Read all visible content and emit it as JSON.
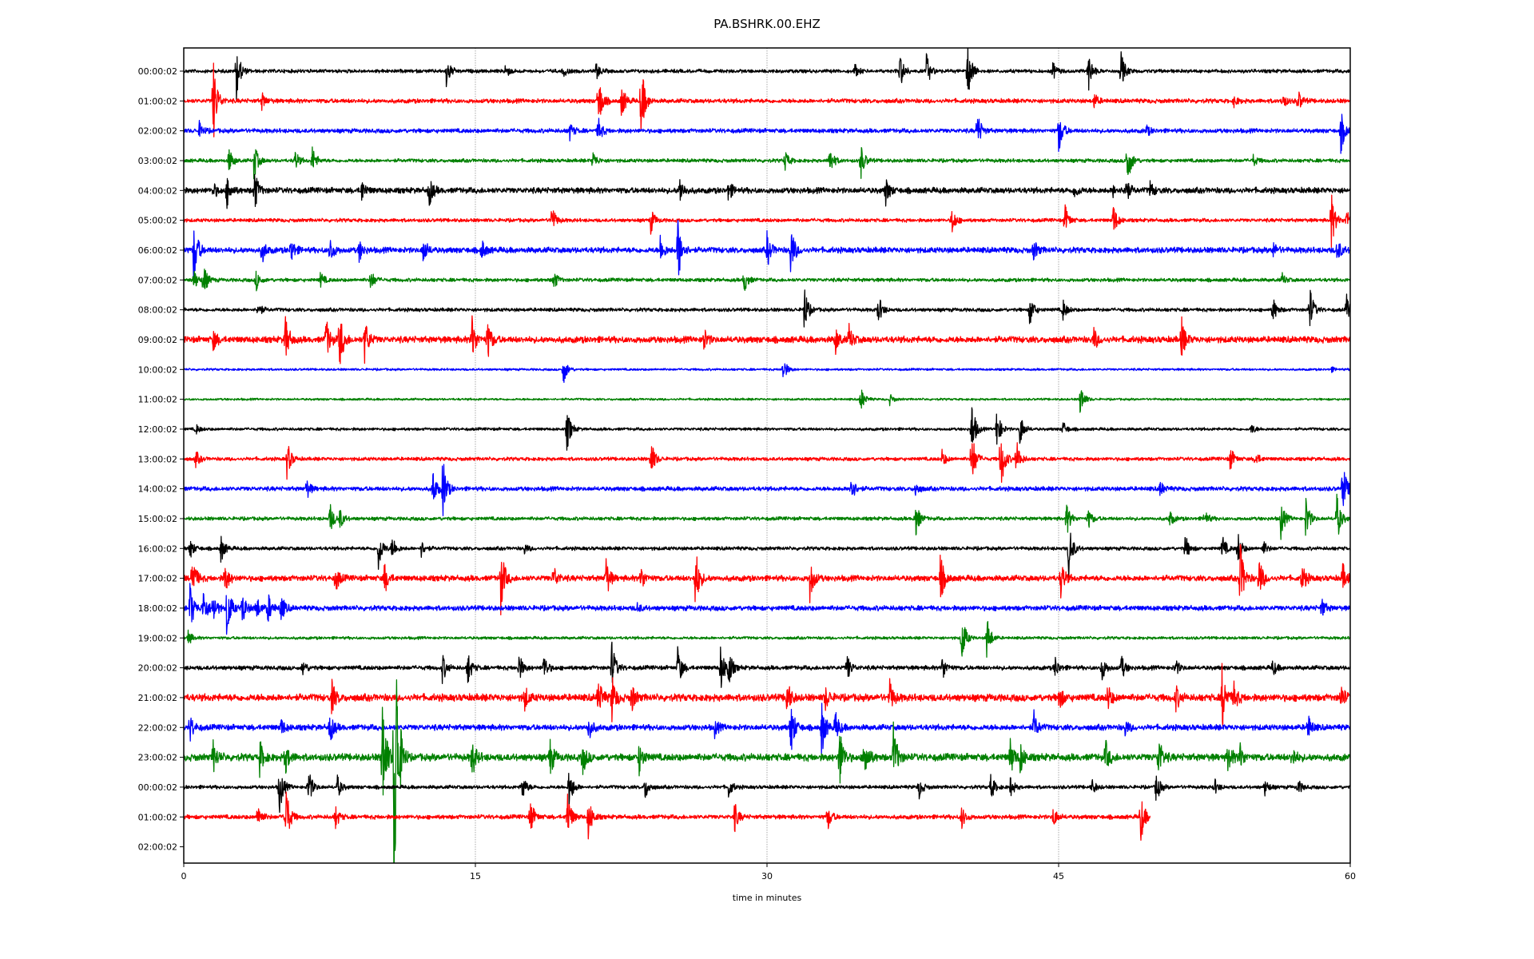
{
  "chart_data": {
    "type": "line",
    "title": "PA.BSHRK.00.EHZ",
    "xlabel": "time in minutes",
    "ylabel": "",
    "xlim": [
      0,
      60
    ],
    "xticks": [
      "0",
      "15",
      "30",
      "45",
      "60"
    ],
    "xtick_values": [
      0,
      15,
      30,
      45,
      60
    ],
    "grid": "vertical dotted at x ticks",
    "colors": [
      "#000000",
      "#ff0000",
      "#0000ff",
      "#008000"
    ],
    "row_labels": [
      "00:00:02",
      "01:00:02",
      "02:00:02",
      "03:00:02",
      "04:00:02",
      "05:00:02",
      "06:00:02",
      "07:00:02",
      "08:00:02",
      "09:00:02",
      "10:00:02",
      "11:00:02",
      "12:00:02",
      "13:00:02",
      "14:00:02",
      "15:00:02",
      "16:00:02",
      "17:00:02",
      "18:00:02",
      "19:00:02",
      "20:00:02",
      "21:00:02",
      "22:00:02",
      "23:00:02",
      "00:00:02",
      "01:00:02",
      "02:00:02"
    ],
    "traces": [
      {
        "noise": 0.05,
        "end": 60,
        "events": [
          [
            2.7,
            1.0
          ],
          [
            13.5,
            0.6
          ],
          [
            16.5,
            0.3
          ],
          [
            19.5,
            0.2
          ],
          [
            21.2,
            0.3
          ],
          [
            34.5,
            0.25
          ],
          [
            36.8,
            0.8
          ],
          [
            38.2,
            0.6
          ],
          [
            40.3,
            1.2
          ],
          [
            44.7,
            0.3
          ],
          [
            46.5,
            0.8
          ],
          [
            48.2,
            0.7
          ]
        ]
      },
      {
        "noise": 0.06,
        "end": 60,
        "events": [
          [
            1.5,
            1.6
          ],
          [
            4,
            0.3
          ],
          [
            21.3,
            1.1
          ],
          [
            22.5,
            0.7
          ],
          [
            23.5,
            1.5
          ],
          [
            46.8,
            0.3
          ],
          [
            54,
            0.2
          ],
          [
            56.5,
            0.3
          ],
          [
            57.3,
            0.4
          ]
        ]
      },
      {
        "noise": 0.06,
        "end": 60,
        "events": [
          [
            0.8,
            0.3
          ],
          [
            19.8,
            0.4
          ],
          [
            21.3,
            0.5
          ],
          [
            40.8,
            0.7
          ],
          [
            45,
            0.8
          ],
          [
            49.5,
            0.2
          ],
          [
            59.5,
            0.8
          ]
        ]
      },
      {
        "noise": 0.05,
        "end": 60,
        "events": [
          [
            2.3,
            0.5
          ],
          [
            3.6,
            0.7
          ],
          [
            5.7,
            0.4
          ],
          [
            6.6,
            0.5
          ],
          [
            21,
            0.4
          ],
          [
            30.9,
            0.4
          ],
          [
            33.2,
            0.6
          ],
          [
            34.8,
            0.7
          ],
          [
            48.5,
            1.1
          ],
          [
            55,
            0.2
          ]
        ]
      },
      {
        "noise": 0.08,
        "end": 60,
        "events": [
          [
            1.5,
            0.3
          ],
          [
            2.2,
            0.6
          ],
          [
            3.6,
            0.9
          ],
          [
            9.1,
            0.5
          ],
          [
            12.6,
            0.6
          ],
          [
            25.5,
            0.5
          ],
          [
            28,
            0.4
          ],
          [
            36.1,
            0.5
          ],
          [
            45.8,
            0.3
          ],
          [
            47.8,
            0.2
          ],
          [
            49.7,
            0.3
          ],
          [
            48.4,
            0.6
          ]
        ]
      },
      {
        "noise": 0.05,
        "end": 60,
        "events": [
          [
            18.9,
            0.6
          ],
          [
            24,
            0.5
          ],
          [
            39.5,
            0.5
          ],
          [
            45.3,
            0.6
          ],
          [
            47.8,
            0.6
          ],
          [
            59,
            1.1
          ],
          [
            59.8,
            0.4
          ]
        ]
      },
      {
        "noise": 0.08,
        "end": 60,
        "events": [
          [
            0.5,
            1.3
          ],
          [
            4,
            0.5
          ],
          [
            5.5,
            0.5
          ],
          [
            7.5,
            0.5
          ],
          [
            9,
            0.4
          ],
          [
            12.3,
            0.5
          ],
          [
            15.3,
            0.4
          ],
          [
            24.5,
            0.5
          ],
          [
            25.4,
            1.3
          ],
          [
            30,
            0.6
          ],
          [
            31.2,
            1.0
          ],
          [
            43.7,
            0.4
          ],
          [
            56,
            0.3
          ],
          [
            59.3,
            0.5
          ]
        ]
      },
      {
        "noise": 0.05,
        "end": 60,
        "events": [
          [
            0.5,
            0.4
          ],
          [
            1,
            0.6
          ],
          [
            3.7,
            0.4
          ],
          [
            7,
            0.3
          ],
          [
            9.6,
            0.4
          ],
          [
            19,
            0.4
          ],
          [
            28.8,
            0.5
          ],
          [
            56.5,
            0.2
          ]
        ]
      },
      {
        "noise": 0.05,
        "end": 60,
        "events": [
          [
            3.8,
            0.3
          ],
          [
            31.9,
            0.9
          ],
          [
            35.7,
            0.6
          ],
          [
            43.5,
            0.6
          ],
          [
            45.2,
            0.4
          ],
          [
            56,
            0.5
          ],
          [
            57.9,
            0.9
          ],
          [
            59.8,
            0.5
          ]
        ]
      },
      {
        "noise": 0.09,
        "end": 60,
        "events": [
          [
            1.5,
            0.4
          ],
          [
            5.2,
            0.9
          ],
          [
            7.3,
            0.8
          ],
          [
            8,
            1.1
          ],
          [
            9.3,
            0.8
          ],
          [
            14.8,
            0.9
          ],
          [
            15.6,
            0.8
          ],
          [
            26.7,
            0.5
          ],
          [
            33.5,
            0.5
          ],
          [
            34.2,
            0.5
          ],
          [
            46.8,
            0.4
          ],
          [
            51.3,
            0.8
          ]
        ]
      },
      {
        "noise": 0.03,
        "end": 60,
        "events": [
          [
            19.5,
            0.6
          ],
          [
            30.8,
            0.5
          ],
          [
            59,
            0.1
          ]
        ]
      },
      {
        "noise": 0.03,
        "end": 60,
        "events": [
          [
            34.8,
            0.5
          ],
          [
            36.3,
            0.2
          ],
          [
            46.1,
            0.6
          ]
        ]
      },
      {
        "noise": 0.04,
        "end": 60,
        "events": [
          [
            0.6,
            0.2
          ],
          [
            19.7,
            0.8
          ],
          [
            40.5,
            1.2
          ],
          [
            41.8,
            0.8
          ],
          [
            43,
            0.6
          ],
          [
            45.2,
            0.3
          ],
          [
            54.9,
            0.2
          ]
        ]
      },
      {
        "noise": 0.05,
        "end": 60,
        "events": [
          [
            0.6,
            0.3
          ],
          [
            5.3,
            0.7
          ],
          [
            24,
            0.8
          ],
          [
            39,
            0.3
          ],
          [
            40.5,
            1.2
          ],
          [
            42,
            1.3
          ],
          [
            42.8,
            0.8
          ],
          [
            53.8,
            0.5
          ],
          [
            55.1,
            0.3
          ]
        ]
      },
      {
        "noise": 0.06,
        "end": 60,
        "events": [
          [
            6.3,
            0.4
          ],
          [
            12.8,
            0.7
          ],
          [
            13.3,
            1.2
          ],
          [
            34.3,
            0.6
          ],
          [
            37.6,
            0.3
          ],
          [
            50.2,
            0.3
          ],
          [
            59.6,
            1.0
          ]
        ]
      },
      {
        "noise": 0.05,
        "end": 60,
        "events": [
          [
            7.5,
            0.6
          ],
          [
            8,
            0.4
          ],
          [
            37.6,
            0.8
          ],
          [
            45.4,
            0.6
          ],
          [
            46.5,
            0.4
          ],
          [
            50.7,
            0.3
          ],
          [
            52.5,
            0.3
          ],
          [
            56.4,
            0.8
          ],
          [
            57.7,
            0.8
          ],
          [
            59.3,
            0.9
          ]
        ]
      },
      {
        "noise": 0.05,
        "end": 60,
        "events": [
          [
            0.3,
            0.4
          ],
          [
            1.9,
            0.5
          ],
          [
            10,
            0.8
          ],
          [
            10.7,
            0.5
          ],
          [
            12.2,
            0.3
          ],
          [
            17.5,
            0.2
          ],
          [
            45.5,
            1.1
          ],
          [
            51.5,
            0.5
          ],
          [
            53.4,
            0.5
          ],
          [
            54.2,
            0.6
          ],
          [
            55.5,
            0.3
          ]
        ]
      },
      {
        "noise": 0.08,
        "end": 60,
        "events": [
          [
            0.4,
            1.0
          ],
          [
            2.1,
            0.6
          ],
          [
            7.8,
            0.5
          ],
          [
            10.3,
            0.6
          ],
          [
            16.3,
            1.2
          ],
          [
            19,
            0.5
          ],
          [
            21.7,
            0.8
          ],
          [
            23.5,
            0.5
          ],
          [
            26.3,
            1.2
          ],
          [
            32.2,
            0.8
          ],
          [
            38.9,
            0.9
          ],
          [
            45.1,
            0.7
          ],
          [
            54.3,
            1.5
          ],
          [
            55.3,
            0.8
          ],
          [
            57.5,
            0.6
          ],
          [
            59.6,
            0.5
          ]
        ]
      },
      {
        "noise": 0.07,
        "end": 60,
        "events": [
          [
            0.3,
            1.0
          ],
          [
            1,
            0.7
          ],
          [
            1.5,
            0.6
          ],
          [
            2.2,
            1.2
          ],
          [
            3,
            0.6
          ],
          [
            3.7,
            0.5
          ],
          [
            4.3,
            0.6
          ],
          [
            5,
            0.5
          ],
          [
            23.3,
            0.2
          ],
          [
            58.5,
            0.4
          ]
        ]
      },
      {
        "noise": 0.04,
        "end": 60,
        "events": [
          [
            0.2,
            0.3
          ],
          [
            40,
            1.0
          ],
          [
            41.3,
            0.5
          ],
          [
            41.3,
            0.3
          ]
        ]
      },
      {
        "noise": 0.06,
        "end": 60,
        "events": [
          [
            6.1,
            0.3
          ],
          [
            13.3,
            0.5
          ],
          [
            14.6,
            0.6
          ],
          [
            17.2,
            0.6
          ],
          [
            18.5,
            0.5
          ],
          [
            22,
            1.0
          ],
          [
            25.4,
            0.8
          ],
          [
            27.6,
            0.9
          ],
          [
            28,
            0.7
          ],
          [
            34.1,
            0.5
          ],
          [
            39,
            0.5
          ],
          [
            44.8,
            0.4
          ],
          [
            47.2,
            0.5
          ],
          [
            48.2,
            0.5
          ],
          [
            51,
            0.3
          ],
          [
            56,
            0.3
          ]
        ]
      },
      {
        "noise": 0.1,
        "end": 60,
        "events": [
          [
            7.6,
            0.6
          ],
          [
            17.5,
            0.5
          ],
          [
            21.3,
            0.8
          ],
          [
            22,
            0.9
          ],
          [
            23,
            0.6
          ],
          [
            31,
            0.7
          ],
          [
            33,
            0.4
          ],
          [
            36.3,
            0.6
          ],
          [
            45,
            0.5
          ],
          [
            47.5,
            0.5
          ],
          [
            51,
            0.5
          ],
          [
            53.4,
            1.2
          ],
          [
            54,
            0.5
          ],
          [
            59.5,
            0.5
          ]
        ]
      },
      {
        "noise": 0.08,
        "end": 60,
        "events": [
          [
            0.3,
            0.5
          ],
          [
            5,
            0.3
          ],
          [
            7.5,
            0.6
          ],
          [
            20.8,
            0.5
          ],
          [
            27.3,
            0.3
          ],
          [
            31.2,
            1.1
          ],
          [
            32.8,
            1.0
          ],
          [
            33.5,
            0.6
          ],
          [
            43.7,
            0.6
          ],
          [
            48.4,
            0.3
          ],
          [
            57.8,
            0.5
          ]
        ]
      },
      {
        "noise": 0.1,
        "end": 60,
        "events": [
          [
            1.5,
            0.6
          ],
          [
            3.9,
            0.6
          ],
          [
            5.2,
            0.6
          ],
          [
            10.2,
            2.5
          ],
          [
            10.8,
            8.0
          ],
          [
            14.8,
            0.8
          ],
          [
            18.8,
            0.8
          ],
          [
            20.5,
            0.6
          ],
          [
            23.4,
            0.6
          ],
          [
            33.7,
            1.3
          ],
          [
            35,
            0.9
          ],
          [
            36.5,
            1.2
          ],
          [
            42.5,
            0.7
          ],
          [
            43,
            0.6
          ],
          [
            47.4,
            0.6
          ],
          [
            50.1,
            0.9
          ],
          [
            53.7,
            0.6
          ],
          [
            54.3,
            0.5
          ],
          [
            57,
            0.4
          ]
        ]
      },
      {
        "noise": 0.05,
        "end": 60,
        "events": [
          [
            4.9,
            1.0
          ],
          [
            6.4,
            0.7
          ],
          [
            7.9,
            0.4
          ],
          [
            17.4,
            0.5
          ],
          [
            19.8,
            0.8
          ],
          [
            23.7,
            0.5
          ],
          [
            28,
            0.4
          ],
          [
            37.8,
            0.4
          ],
          [
            41.5,
            0.5
          ],
          [
            42.5,
            0.4
          ],
          [
            46.7,
            0.3
          ],
          [
            50,
            0.6
          ],
          [
            53,
            0.3
          ],
          [
            55.6,
            0.3
          ],
          [
            57.3,
            0.3
          ]
        ]
      },
      {
        "noise": 0.06,
        "end": 49.7,
        "events": [
          [
            3.8,
            0.5
          ],
          [
            5.2,
            1.5
          ],
          [
            7.8,
            0.4
          ],
          [
            17.8,
            0.7
          ],
          [
            19.7,
            1.1
          ],
          [
            20.8,
            0.8
          ],
          [
            28.3,
            0.6
          ],
          [
            33.1,
            0.5
          ],
          [
            40,
            0.4
          ],
          [
            44.7,
            0.4
          ],
          [
            49.2,
            1.0
          ]
        ]
      },
      {
        "noise": 0,
        "end": 0,
        "events": []
      }
    ]
  }
}
